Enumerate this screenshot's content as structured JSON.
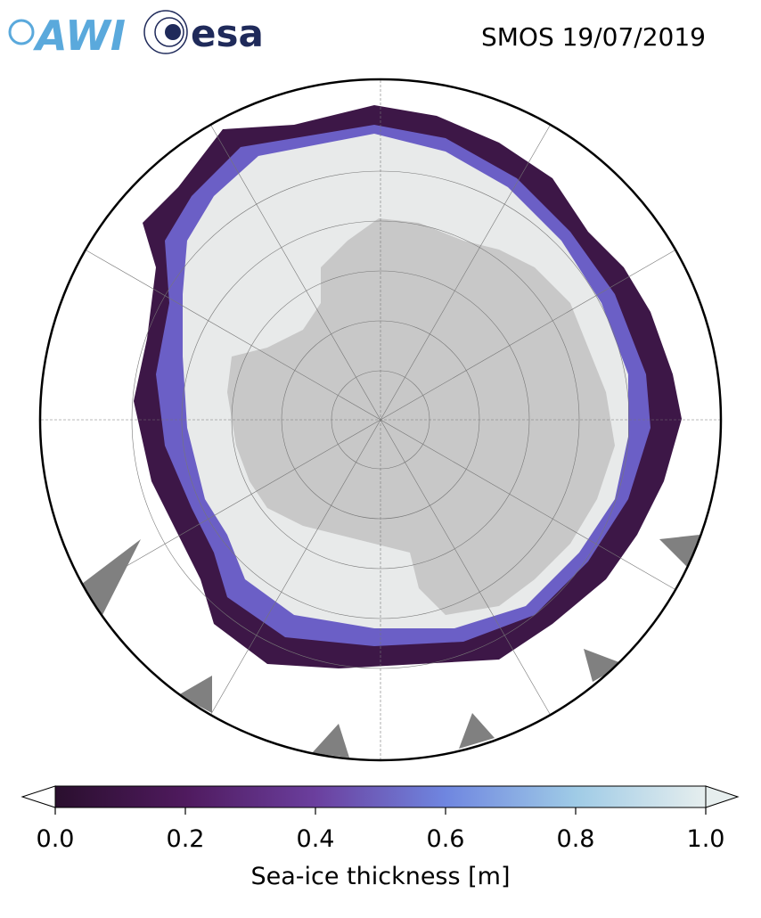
{
  "header": {
    "logos": [
      "AWI",
      "esa"
    ],
    "title": "SMOS 19/07/2019"
  },
  "colorbar": {
    "label": "Sea-ice thickness [m]",
    "lim": [
      0,
      1
    ],
    "ticks": [
      {
        "value": 0,
        "label": "0.0"
      },
      0.2,
      0.4,
      0.6,
      0.8,
      {
        "value": 1,
        "label": "1.0"
      }
    ],
    "colormap": [
      "#2a0f2e",
      "#4f1a5e",
      "#6b3f9e",
      "#6f86e0",
      "#9fcbe6",
      "#e6eeee"
    ]
  }
}
